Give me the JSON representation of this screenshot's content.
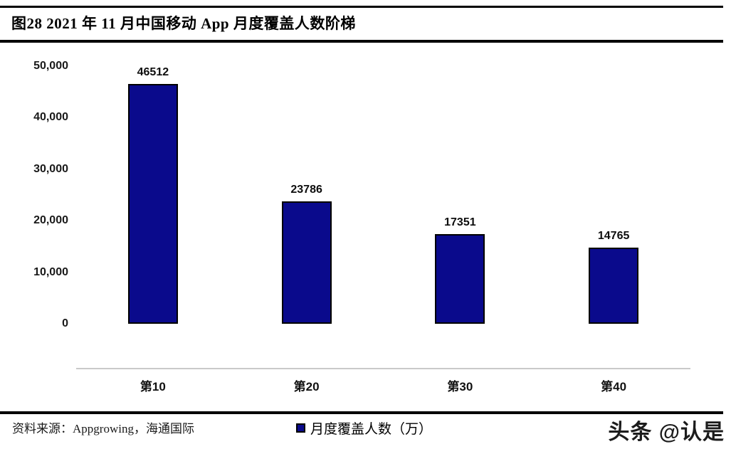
{
  "chart_data": {
    "type": "bar",
    "title": "图28 2021 年 11 月中国移动 App 月度覆盖人数阶梯",
    "categories": [
      "第10",
      "第20",
      "第30",
      "第40"
    ],
    "values": [
      46512,
      23786,
      17351,
      14765
    ],
    "data_labels": [
      "46512",
      "23786",
      "17351",
      "14765"
    ],
    "legend": "月度覆盖人数（万）",
    "legend_position": "bottom",
    "xlabel": "",
    "ylabel": "",
    "ylim": [
      0,
      50000
    ],
    "yticks": [
      0,
      10000,
      20000,
      30000,
      40000,
      50000
    ],
    "ytick_labels": [
      "0",
      "10,000",
      "20,000",
      "30,000",
      "40,000",
      "50,000"
    ],
    "grid": false,
    "bar_color": "#0a0a8c",
    "bar_border_color": "#000000",
    "axis_line_color": "#c9c9c9"
  },
  "source": "资料来源：Appgrowing，海通国际",
  "watermark": "头条 @认是"
}
